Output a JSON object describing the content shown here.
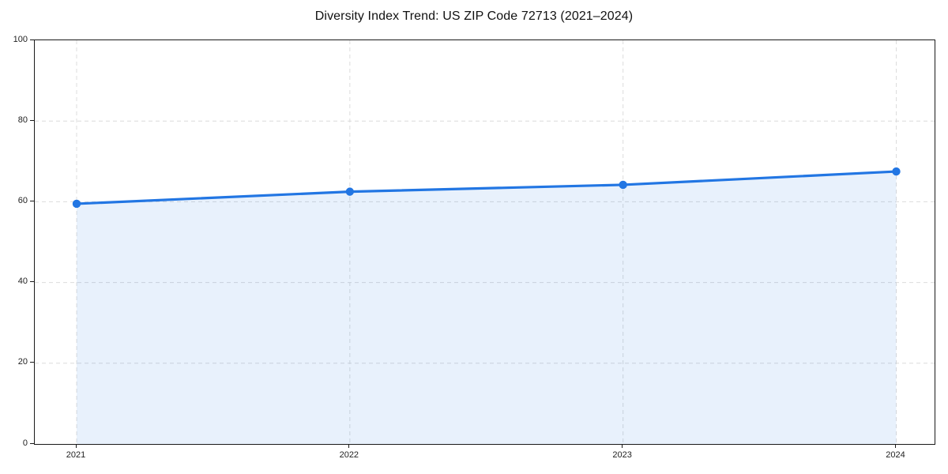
{
  "title": "Diversity Index Trend: US ZIP Code 72713 (2021–2024)",
  "chart_data": {
    "type": "area",
    "title": "Diversity Index Trend: US ZIP Code 72713 (2021–2024)",
    "categories": [
      "2021",
      "2022",
      "2023",
      "2024"
    ],
    "series": [
      {
        "name": "Diversity Index",
        "values": [
          59.5,
          62.5,
          64.2,
          67.5
        ]
      }
    ],
    "xlabel": "",
    "ylabel": "",
    "ylim": [
      0,
      100
    ],
    "yticks": [
      0,
      20,
      40,
      60,
      80,
      100
    ],
    "grid": true,
    "grid_style": "dashed",
    "legend": false,
    "marker": "circle",
    "line_color": "#2276e3",
    "fill_color": "rgba(34, 118, 227, 0.10)",
    "grid_color": "#dcdcdc",
    "axis_color": "#1a1a1a",
    "tick_label_color": "#222222",
    "background_color": "#ffffff"
  }
}
